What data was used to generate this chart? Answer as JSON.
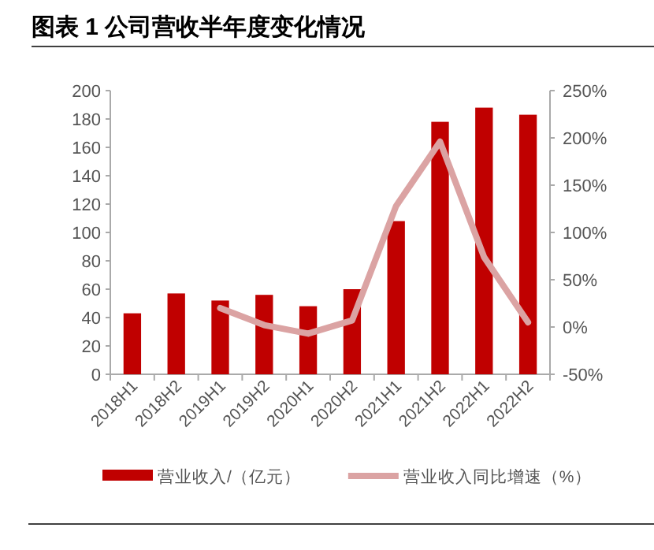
{
  "chart_data": {
    "type": "bar",
    "title": "图表 1 公司营收半年度变化情况",
    "categories": [
      "2018H1",
      "2018H2",
      "2019H1",
      "2019H2",
      "2020H1",
      "2020H2",
      "2021H1",
      "2021H2",
      "2022H1",
      "2022H2"
    ],
    "series": [
      {
        "name": "营业收入/（亿元）",
        "color": "#c00000",
        "values": [
          43,
          57,
          52,
          56,
          48,
          60,
          108,
          178,
          188,
          183
        ]
      },
      {
        "name": "营业收入同比增速（%）",
        "color": "#dba3a3",
        "type": "line",
        "axis": "y2",
        "values": [
          null,
          null,
          20,
          2,
          -7,
          7,
          128,
          196,
          74,
          5
        ]
      }
    ],
    "ylim": [
      0,
      200
    ],
    "yticks": [
      0,
      20,
      40,
      60,
      80,
      100,
      120,
      140,
      160,
      180,
      200
    ],
    "y2lim": [
      -50,
      250
    ],
    "y2ticks": [
      {
        "value": -50,
        "label": "-50%"
      },
      {
        "value": 0,
        "label": "0%"
      },
      {
        "value": 50,
        "label": "50%"
      },
      {
        "value": 100,
        "label": "100%"
      },
      {
        "value": 150,
        "label": "150%"
      },
      {
        "value": 200,
        "label": "200%"
      },
      {
        "value": 250,
        "label": "250%"
      }
    ],
    "grid": false,
    "legend": "bottom",
    "line_style": "solid",
    "marker": "none"
  }
}
